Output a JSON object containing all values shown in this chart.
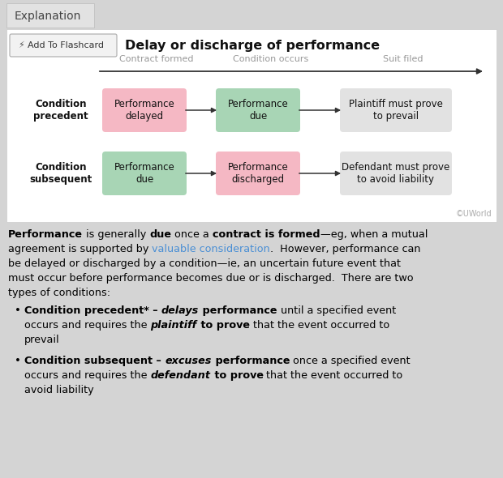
{
  "bg_outer": "#d4d4d4",
  "tab_text": "Explanation",
  "tab_bg": "#e2e2e2",
  "card_bg": "#ffffff",
  "card_border": "#cccccc",
  "btn_bg": "#f2f2f2",
  "btn_border": "#aaaaaa",
  "btn_text": "Add To Flashcard",
  "card_title": "Delay or discharge of performance",
  "timeline_labels": [
    "Contract formed",
    "Condition occurs",
    "Suit filed"
  ],
  "row_labels": [
    "Condition\nprecedent",
    "Condition\nsubsequent"
  ],
  "box1_texts": [
    "Performance\ndelayed",
    "Performance\ndue"
  ],
  "box2_texts": [
    "Performance\ndue",
    "Performance\ndischarged"
  ],
  "box3_texts": [
    "Plaintiff must prove\nto prevail",
    "Defendant must prove\nto avoid liability"
  ],
  "box1_colors": [
    "#f5b8c4",
    "#a8d5b5"
  ],
  "box2_colors": [
    "#a8d5b5",
    "#f5b8c4"
  ],
  "box3_color": "#e2e2e2",
  "arrow_color": "#333333",
  "watermark": "©UWorld",
  "link_color": "#4a8fd4",
  "text_color": "#111111",
  "label_color": "#999999"
}
